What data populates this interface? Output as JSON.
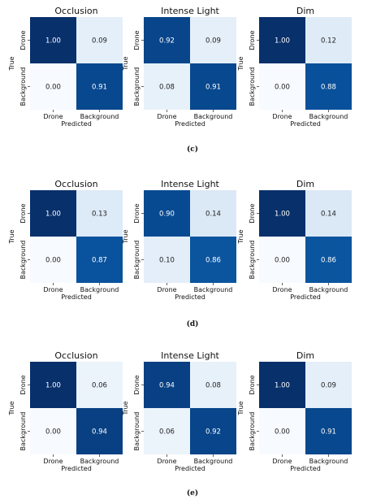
{
  "chart_data": [
    {
      "type": "heatmap",
      "title": "Occlusion",
      "rows": [
        "Drone",
        "Background"
      ],
      "columns": [
        "Drone",
        "Background"
      ],
      "values": [
        [
          "1.00",
          "0.09"
        ],
        [
          "0.00",
          "0.91"
        ]
      ],
      "xlabel": "Predicted",
      "ylabel": "True"
    },
    {
      "type": "heatmap",
      "title": "Intense Light",
      "rows": [
        "Drone",
        "Background"
      ],
      "columns": [
        "Drone",
        "Background"
      ],
      "values": [
        [
          "0.92",
          "0.09"
        ],
        [
          "0.08",
          "0.91"
        ]
      ],
      "xlabel": "Predicted",
      "ylabel": "True"
    },
    {
      "type": "heatmap",
      "title": "Dim",
      "rows": [
        "Drone",
        "Background"
      ],
      "columns": [
        "Drone",
        "Background"
      ],
      "values": [
        [
          "1.00",
          "0.12"
        ],
        [
          "0.00",
          "0.88"
        ]
      ],
      "xlabel": "Predicted",
      "ylabel": "True"
    },
    {
      "type": "heatmap",
      "title": "Occlusion",
      "rows": [
        "Drone",
        "Background"
      ],
      "columns": [
        "Drone",
        "Background"
      ],
      "values": [
        [
          "1.00",
          "0.13"
        ],
        [
          "0.00",
          "0.87"
        ]
      ],
      "xlabel": "Predicted",
      "ylabel": "True"
    },
    {
      "type": "heatmap",
      "title": "Intense Light",
      "rows": [
        "Drone",
        "Background"
      ],
      "columns": [
        "Drone",
        "Background"
      ],
      "values": [
        [
          "0.90",
          "0.14"
        ],
        [
          "0.10",
          "0.86"
        ]
      ],
      "xlabel": "Predicted",
      "ylabel": "True"
    },
    {
      "type": "heatmap",
      "title": "Dim",
      "rows": [
        "Drone",
        "Background"
      ],
      "columns": [
        "Drone",
        "Background"
      ],
      "values": [
        [
          "1.00",
          "0.14"
        ],
        [
          "0.00",
          "0.86"
        ]
      ],
      "xlabel": "Predicted",
      "ylabel": "True"
    },
    {
      "type": "heatmap",
      "title": "Occlusion",
      "rows": [
        "Drone",
        "Background"
      ],
      "columns": [
        "Drone",
        "Background"
      ],
      "values": [
        [
          "1.00",
          "0.06"
        ],
        [
          "0.00",
          "0.94"
        ]
      ],
      "xlabel": "Predicted",
      "ylabel": "True"
    },
    {
      "type": "heatmap",
      "title": "Intense Light",
      "rows": [
        "Drone",
        "Background"
      ],
      "columns": [
        "Drone",
        "Background"
      ],
      "values": [
        [
          "0.94",
          "0.08"
        ],
        [
          "0.06",
          "0.92"
        ]
      ],
      "xlabel": "Predicted",
      "ylabel": "True"
    },
    {
      "type": "heatmap",
      "title": "Dim",
      "rows": [
        "Drone",
        "Background"
      ],
      "columns": [
        "Drone",
        "Background"
      ],
      "values": [
        [
          "1.00",
          "0.09"
        ],
        [
          "0.00",
          "0.91"
        ]
      ],
      "xlabel": "Predicted",
      "ylabel": "True"
    }
  ],
  "panel_labels": [
    "(c)",
    "(d)",
    "(e)"
  ],
  "colormap": {
    "low": "#f7fbff",
    "high": "#08306b",
    "text_light": "#ffffff",
    "text_dark": "#222222"
  }
}
